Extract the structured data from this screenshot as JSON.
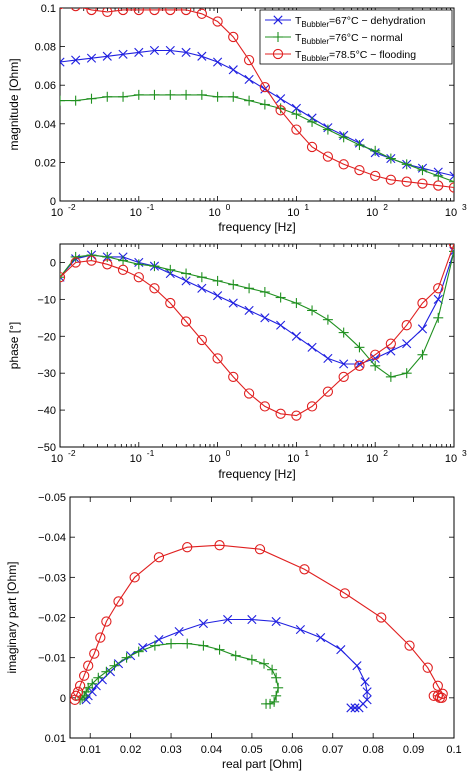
{
  "chart_data": [
    {
      "type": "line",
      "xscale": "log",
      "xlim": [
        0.01,
        1000
      ],
      "ylim": [
        0,
        0.1
      ],
      "xlabel": "frequency [Hz]",
      "ylabel": "magnitude [Ohm]",
      "xticks": [
        0.01,
        0.1,
        1,
        10,
        100,
        1000
      ],
      "xtick_labels": [
        "10",
        "10",
        "10",
        "10",
        "10",
        "10"
      ],
      "xtick_exponents": [
        "-2",
        "-1",
        "0",
        "1",
        "2",
        "3"
      ],
      "yticks": [
        0,
        0.02,
        0.04,
        0.06,
        0.08,
        0.1
      ],
      "ytick_labels": [
        "0",
        "0.02",
        "0.04",
        "0.06",
        "0.08",
        "0.1"
      ],
      "legend_position": "top-right",
      "legend": [
        {
          "prefix": "T",
          "sub": "Bubbler",
          "suffix": "=67°C − dehydration",
          "color": "#2020e0",
          "marker": "x"
        },
        {
          "prefix": "T",
          "sub": "Bubbler",
          "suffix": "=76°C − normal",
          "color": "#209020",
          "marker": "+"
        },
        {
          "prefix": "T",
          "sub": "Bubbler",
          "suffix": "=78.5°C − flooding",
          "color": "#e02020",
          "marker": "o"
        }
      ],
      "series": [
        {
          "color": "#2020e0",
          "marker": "x",
          "x": [
            0.01,
            0.0158,
            0.0251,
            0.0398,
            0.0631,
            0.1,
            0.158,
            0.251,
            0.398,
            0.631,
            1,
            1.58,
            2.51,
            3.98,
            6.31,
            10,
            15.8,
            25.1,
            39.8,
            63.1,
            100,
            158,
            251,
            398,
            631,
            1000
          ],
          "y": [
            0.072,
            0.073,
            0.074,
            0.075,
            0.076,
            0.077,
            0.078,
            0.078,
            0.077,
            0.075,
            0.072,
            0.068,
            0.063,
            0.058,
            0.053,
            0.048,
            0.043,
            0.038,
            0.034,
            0.03,
            0.025,
            0.022,
            0.019,
            0.017,
            0.015,
            0.013
          ]
        },
        {
          "color": "#209020",
          "marker": "+",
          "x": [
            0.01,
            0.0158,
            0.0251,
            0.0398,
            0.0631,
            0.1,
            0.158,
            0.251,
            0.398,
            0.631,
            1,
            1.58,
            2.51,
            3.98,
            6.31,
            10,
            15.8,
            25.1,
            39.8,
            63.1,
            100,
            158,
            251,
            398,
            631,
            1000
          ],
          "y": [
            0.052,
            0.052,
            0.053,
            0.054,
            0.054,
            0.055,
            0.055,
            0.055,
            0.055,
            0.055,
            0.054,
            0.054,
            0.052,
            0.05,
            0.048,
            0.045,
            0.041,
            0.037,
            0.033,
            0.029,
            0.026,
            0.022,
            0.019,
            0.016,
            0.013,
            0.01
          ]
        },
        {
          "color": "#e02020",
          "marker": "o",
          "x": [
            0.01,
            0.0158,
            0.0251,
            0.0398,
            0.0631,
            0.1,
            0.158,
            0.251,
            0.398,
            0.631,
            1,
            1.58,
            2.51,
            3.98,
            6.31,
            10,
            15.8,
            25.1,
            39.8,
            63.1,
            100,
            158,
            251,
            398,
            631,
            1000
          ],
          "y": [
            0.102,
            0.101,
            0.099,
            0.098,
            0.099,
            0.099,
            0.099,
            0.099,
            0.099,
            0.097,
            0.093,
            0.085,
            0.073,
            0.059,
            0.047,
            0.037,
            0.028,
            0.023,
            0.019,
            0.016,
            0.013,
            0.011,
            0.01,
            0.009,
            0.008,
            0.007
          ]
        }
      ]
    },
    {
      "type": "line",
      "xscale": "log",
      "xlim": [
        0.01,
        1000
      ],
      "ylim": [
        -50,
        5
      ],
      "xlabel": "frequency [Hz]",
      "ylabel": "phase [°]",
      "xticks": [
        0.01,
        0.1,
        1,
        10,
        100,
        1000
      ],
      "xtick_labels": [
        "10",
        "10",
        "10",
        "10",
        "10",
        "10"
      ],
      "xtick_exponents": [
        "-2",
        "-1",
        "0",
        "1",
        "2",
        "3"
      ],
      "yticks": [
        -50,
        -40,
        -30,
        -20,
        -10,
        0
      ],
      "ytick_labels": [
        "−50",
        "−40",
        "−30",
        "−20",
        "−10",
        "0"
      ],
      "series": [
        {
          "color": "#2020e0",
          "marker": "x",
          "x": [
            0.01,
            0.0158,
            0.0251,
            0.0398,
            0.0631,
            0.1,
            0.158,
            0.251,
            0.398,
            0.631,
            1,
            1.58,
            2.51,
            3.98,
            6.31,
            10,
            15.8,
            25.1,
            39.8,
            63.1,
            100,
            158,
            251,
            398,
            631,
            1000
          ],
          "y": [
            -4,
            1,
            2,
            1.5,
            1.5,
            0,
            -1,
            -3,
            -5,
            -7,
            -9,
            -11,
            -13,
            -15,
            -17,
            -20,
            -23,
            -26,
            -27.5,
            -27.5,
            -26,
            -24,
            -22,
            -18,
            -10,
            3
          ]
        },
        {
          "color": "#209020",
          "marker": "+",
          "x": [
            0.01,
            0.0158,
            0.0251,
            0.0398,
            0.0631,
            0.1,
            0.158,
            0.251,
            0.398,
            0.631,
            1,
            1.58,
            2.51,
            3.98,
            6.31,
            10,
            15.8,
            25.1,
            39.8,
            63.1,
            100,
            158,
            251,
            398,
            631,
            1000
          ],
          "y": [
            -4,
            1.5,
            2,
            1.5,
            0.5,
            -0.5,
            -1,
            -2,
            -3,
            -4,
            -5,
            -6,
            -7,
            -8,
            -9.5,
            -11,
            -13,
            -15.5,
            -19,
            -23,
            -28,
            -31,
            -30,
            -25,
            -15,
            3
          ]
        },
        {
          "color": "#e02020",
          "marker": "o",
          "x": [
            0.01,
            0.0158,
            0.0251,
            0.0398,
            0.0631,
            0.1,
            0.158,
            0.251,
            0.398,
            0.631,
            1,
            1.58,
            2.51,
            3.98,
            6.31,
            10,
            15.8,
            25.1,
            39.8,
            63.1,
            100,
            158,
            251,
            398,
            631,
            1000
          ],
          "y": [
            -4,
            0,
            0.5,
            -0.5,
            -2,
            -4,
            -7,
            -11,
            -16,
            -21,
            -26,
            -31,
            -35.5,
            -39,
            -41,
            -41.5,
            -39,
            -35,
            -31,
            -28,
            -25,
            -22,
            -17,
            -11,
            -7,
            5
          ]
        }
      ]
    },
    {
      "type": "line",
      "xscale": "linear",
      "xlim": [
        0.005,
        0.1
      ],
      "ylim": [
        0.01,
        -0.05
      ],
      "y_reversed": true,
      "xlabel": "real part [Ohm]",
      "ylabel": "imaginary part [Ohm]",
      "xticks": [
        0.01,
        0.02,
        0.03,
        0.04,
        0.05,
        0.06,
        0.07,
        0.08,
        0.09,
        0.1
      ],
      "xtick_labels": [
        "0.01",
        "0.02",
        "0.03",
        "0.04",
        "0.05",
        "0.06",
        "0.07",
        "0.08",
        "0.09",
        "0.1"
      ],
      "yticks": [
        0.01,
        0,
        -0.01,
        -0.02,
        -0.03,
        -0.04,
        -0.05
      ],
      "ytick_labels": [
        "0.01",
        "0",
        "−0.01",
        "−0.02",
        "−0.03",
        "−0.04",
        "−0.05"
      ],
      "series": [
        {
          "color": "#2020e0",
          "marker": "x",
          "x": [
            0.0745,
            0.0755,
            0.0765,
            0.0775,
            0.0785,
            0.0785,
            0.078,
            0.076,
            0.072,
            0.067,
            0.062,
            0.056,
            0.05,
            0.044,
            0.038,
            0.032,
            0.027,
            0.023,
            0.02,
            0.017,
            0.015,
            0.013,
            0.0115,
            0.0105,
            0.0095,
            0.009
          ],
          "y": [
            0.0025,
            0.0025,
            0.0025,
            0.0015,
            0.0005,
            -0.0015,
            -0.004,
            -0.008,
            -0.012,
            -0.015,
            -0.017,
            -0.019,
            -0.0195,
            -0.0195,
            -0.0185,
            -0.0165,
            -0.0145,
            -0.0125,
            -0.0105,
            -0.0085,
            -0.0065,
            -0.0045,
            -0.003,
            -0.0015,
            -0.0005,
            0.0005
          ]
        },
        {
          "color": "#209020",
          "marker": "+",
          "x": [
            0.0535,
            0.0545,
            0.0555,
            0.056,
            0.0565,
            0.056,
            0.055,
            0.053,
            0.05,
            0.046,
            0.042,
            0.038,
            0.034,
            0.03,
            0.026,
            0.022,
            0.019,
            0.016,
            0.014,
            0.012,
            0.0105,
            0.0095,
            0.009,
            0.0085,
            0.008,
            0.0075
          ],
          "y": [
            0.0015,
            0.0015,
            0.001,
            -0.0005,
            -0.0025,
            -0.005,
            -0.007,
            -0.0085,
            -0.0095,
            -0.0105,
            -0.012,
            -0.013,
            -0.0135,
            -0.0135,
            -0.013,
            -0.0115,
            -0.01,
            -0.008,
            -0.0065,
            -0.005,
            -0.0035,
            -0.0025,
            -0.0015,
            -0.0005,
            0.0,
            0.0005
          ]
        },
        {
          "color": "#e02020",
          "marker": "o",
          "x": [
            0.095,
            0.096,
            0.0965,
            0.097,
            0.0972,
            0.096,
            0.0935,
            0.089,
            0.082,
            0.073,
            0.063,
            0.052,
            0.042,
            0.034,
            0.027,
            0.021,
            0.017,
            0.014,
            0.0125,
            0.011,
            0.0095,
            0.0085,
            0.0075,
            0.007,
            0.0065,
            0.0062
          ],
          "y": [
            -0.0005,
            -0.0005,
            0.0,
            0.0,
            -0.001,
            -0.003,
            -0.0075,
            -0.013,
            -0.02,
            -0.026,
            -0.032,
            -0.037,
            -0.038,
            -0.0375,
            -0.035,
            -0.03,
            -0.024,
            -0.019,
            -0.015,
            -0.011,
            -0.008,
            -0.0055,
            -0.003,
            -0.0015,
            -0.0005,
            0.0005
          ]
        }
      ]
    }
  ]
}
